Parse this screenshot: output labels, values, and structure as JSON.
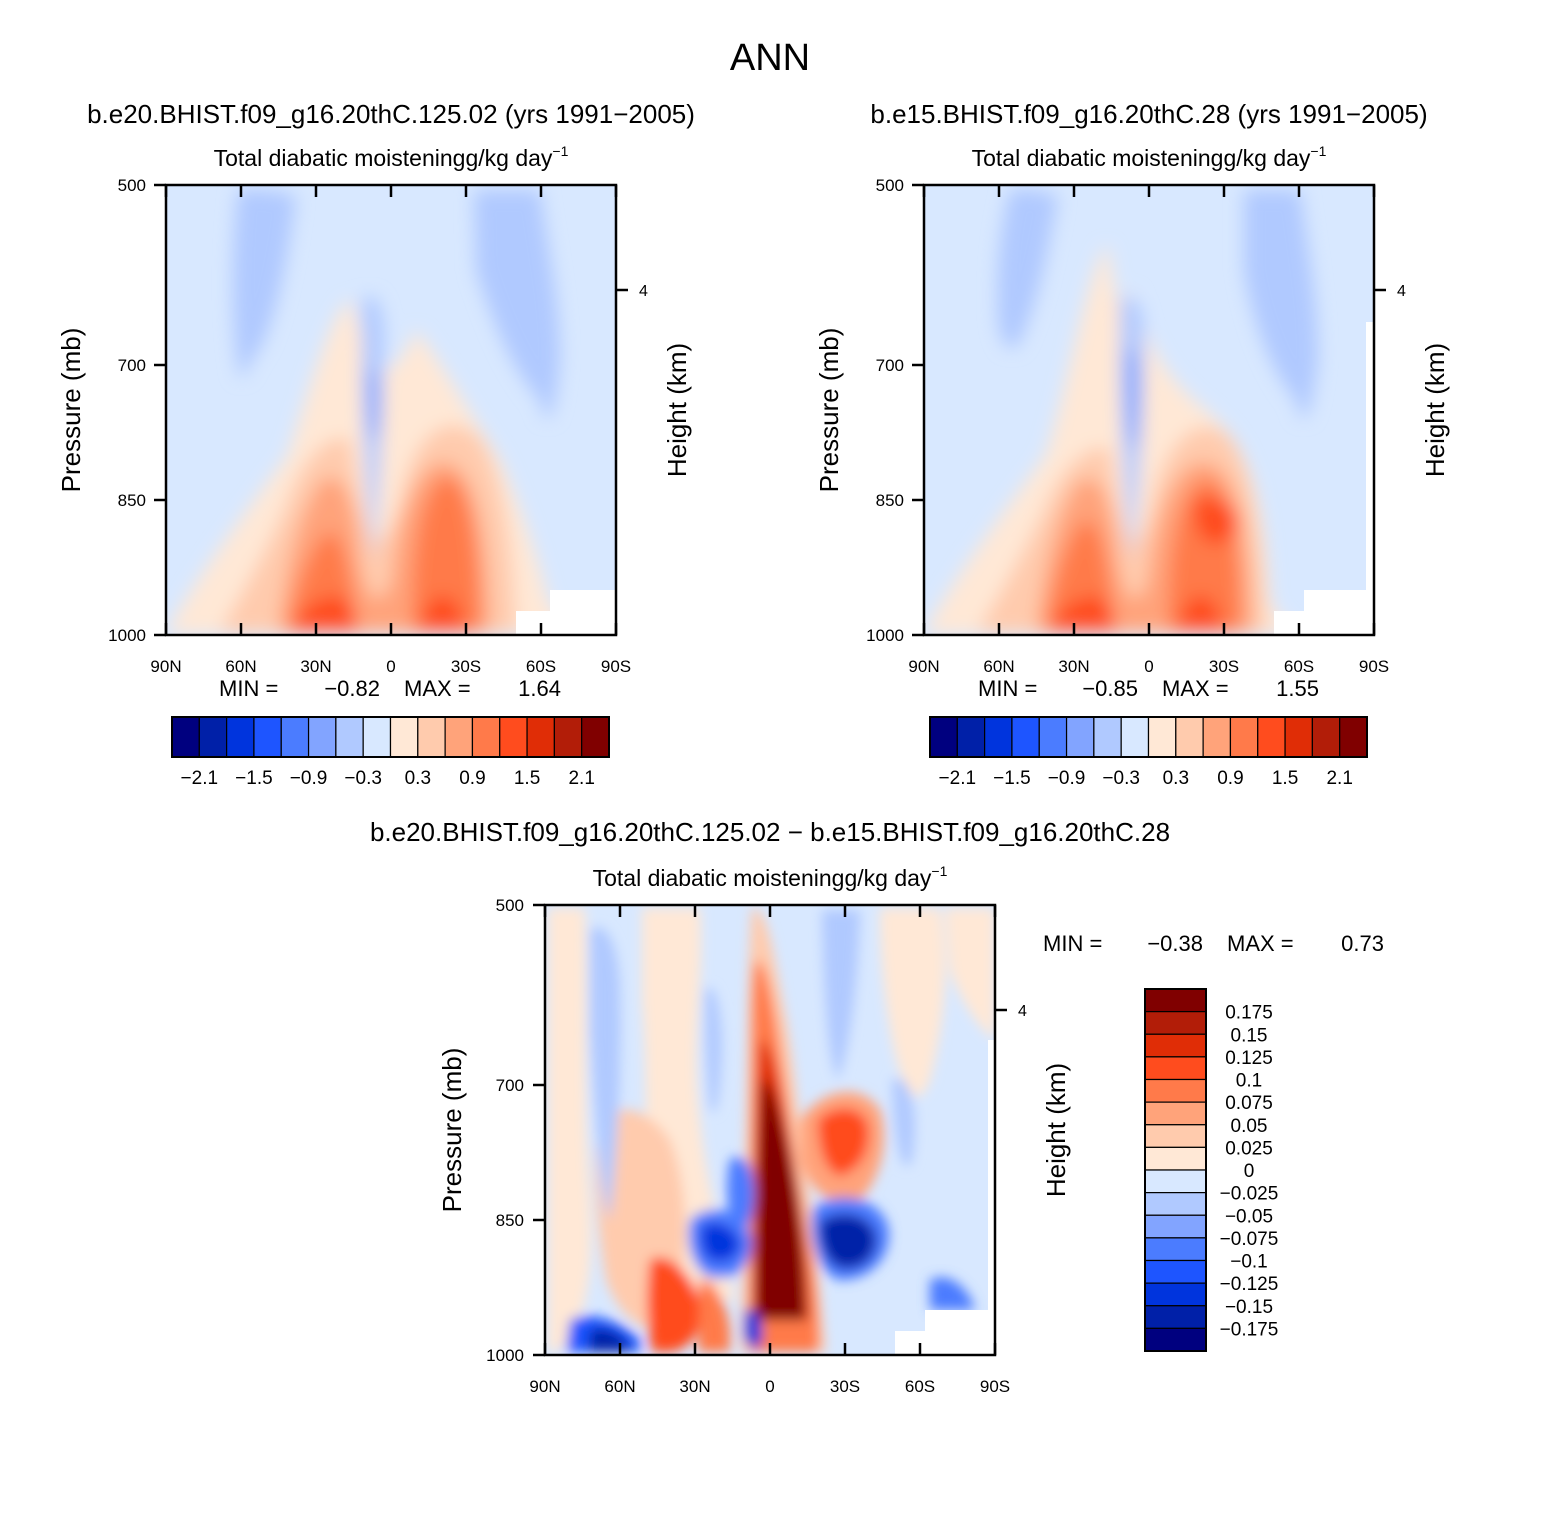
{
  "figure": {
    "title": "ANN"
  },
  "panels": [
    {
      "id": "p1",
      "case_title": "b.e20.BHIST.f09_g16.20thC.125.02 (yrs 1991−2005)",
      "variable_label": "Total diabatic moistening",
      "units_label": "g/kg day",
      "units_exponent": "−1",
      "min_label": "MIN =",
      "min_value": "−0.82",
      "max_label": "MAX =",
      "max_value": "1.64"
    },
    {
      "id": "p2",
      "case_title": "b.e15.BHIST.f09_g16.20thC.28 (yrs 1991−2005)",
      "variable_label": "Total diabatic moistening",
      "units_label": "g/kg day",
      "units_exponent": "−1",
      "min_label": "MIN =",
      "min_value": "−0.85",
      "max_label": "MAX =",
      "max_value": "1.55"
    },
    {
      "id": "p3",
      "case_title": "b.e20.BHIST.f09_g16.20thC.125.02 − b.e15.BHIST.f09_g16.20thC.28",
      "variable_label": "Total diabatic moistening",
      "units_label": "g/kg day",
      "units_exponent": "−1",
      "min_label": "MIN =",
      "min_value": "−0.38",
      "max_label": "MAX =",
      "max_value": "0.73"
    }
  ],
  "chart_data": [
    {
      "panel": "p1",
      "type": "heatmap",
      "plot_kind": "latitude-pressure filled contour",
      "title": "Total diabatic moistening g/kg day^-1",
      "xlabel": "",
      "ylabel": "Pressure (mb)",
      "ylabel_right": "Height (km)",
      "x_ticks": [
        "90N",
        "60N",
        "30N",
        "0",
        "30S",
        "60S",
        "90S"
      ],
      "y_ticks": [
        "500",
        "700",
        "850",
        "1000"
      ],
      "right_ticks": [
        "4"
      ],
      "xlim": [
        90,
        -90
      ],
      "ylim": [
        1000,
        500
      ],
      "min": -0.82,
      "max": 1.64,
      "features": [
        {
          "lat": 17,
          "p": 935,
          "value": 1.5
        },
        {
          "lat": -20,
          "p": 900,
          "value": 1.2
        },
        {
          "lat": -25,
          "p": 860,
          "value": 1.1
        },
        {
          "lat": 6,
          "p": 760,
          "value": -0.45
        },
        {
          "lat": 57,
          "p": 620,
          "value": -0.3
        },
        {
          "lat": -50,
          "p": 620,
          "value": -0.35
        }
      ],
      "colorbar": {
        "labels": [
          "−2.1",
          "−1.5",
          "−0.9",
          "−0.3",
          "0.3",
          "0.9",
          "1.5",
          "2.1"
        ],
        "levels": [
          -2.1,
          -1.8,
          -1.5,
          -1.2,
          -0.9,
          -0.6,
          -0.3,
          0,
          0.3,
          0.6,
          0.9,
          1.2,
          1.5,
          1.8,
          2.1
        ],
        "colors": [
          "#00007f",
          "#0020a8",
          "#0034dd",
          "#1e55ff",
          "#4b7cff",
          "#82a4ff",
          "#b0c9ff",
          "#d8e8ff",
          "#ffe8d6",
          "#ffcbad",
          "#ffa37a",
          "#ff7a4a",
          "#ff4c1e",
          "#e02d06",
          "#b21d08",
          "#800000"
        ]
      }
    },
    {
      "panel": "p2",
      "type": "heatmap",
      "plot_kind": "latitude-pressure filled contour",
      "title": "Total diabatic moistening g/kg day^-1",
      "xlabel": "",
      "ylabel": "Pressure (mb)",
      "ylabel_right": "Height (km)",
      "x_ticks": [
        "90N",
        "60N",
        "30N",
        "0",
        "30S",
        "60S",
        "90S"
      ],
      "y_ticks": [
        "500",
        "700",
        "850",
        "1000"
      ],
      "right_ticks": [
        "4"
      ],
      "xlim": [
        90,
        -90
      ],
      "ylim": [
        1000,
        500
      ],
      "min": -0.85,
      "max": 1.55,
      "features": [
        {
          "lat": 17,
          "p": 935,
          "value": 1.4
        },
        {
          "lat": -25,
          "p": 880,
          "value": 1.3
        },
        {
          "lat": 6,
          "p": 740,
          "value": -0.5
        },
        {
          "lat": 57,
          "p": 620,
          "value": -0.3
        },
        {
          "lat": -50,
          "p": 620,
          "value": -0.35
        }
      ],
      "colorbar": {
        "labels": [
          "−2.1",
          "−1.5",
          "−0.9",
          "−0.3",
          "0.3",
          "0.9",
          "1.5",
          "2.1"
        ],
        "levels": [
          -2.1,
          -1.8,
          -1.5,
          -1.2,
          -0.9,
          -0.6,
          -0.3,
          0,
          0.3,
          0.6,
          0.9,
          1.2,
          1.5,
          1.8,
          2.1
        ],
        "colors": [
          "#00007f",
          "#0020a8",
          "#0034dd",
          "#1e55ff",
          "#4b7cff",
          "#82a4ff",
          "#b0c9ff",
          "#d8e8ff",
          "#ffe8d6",
          "#ffcbad",
          "#ffa37a",
          "#ff7a4a",
          "#ff4c1e",
          "#e02d06",
          "#b21d08",
          "#800000"
        ]
      }
    },
    {
      "panel": "p3",
      "type": "heatmap",
      "plot_kind": "latitude-pressure filled contour (difference)",
      "title": "Total diabatic moistening g/kg day^-1",
      "xlabel": "",
      "ylabel": "Pressure (mb)",
      "ylabel_right": "Height (km)",
      "x_ticks": [
        "90N",
        "60N",
        "30N",
        "0",
        "30S",
        "60S",
        "90S"
      ],
      "y_ticks": [
        "500",
        "700",
        "850",
        "1000"
      ],
      "right_ticks": [
        "4"
      ],
      "xlim": [
        90,
        -90
      ],
      "ylim": [
        1000,
        500
      ],
      "min": -0.38,
      "max": 0.73,
      "features": [
        {
          "lat": 0,
          "p": 780,
          "value": 0.2
        },
        {
          "lat": -30,
          "p": 760,
          "value": 0.14
        },
        {
          "lat": -30,
          "p": 870,
          "value": -0.2
        },
        {
          "lat": 20,
          "p": 860,
          "value": -0.15
        },
        {
          "lat": 40,
          "p": 940,
          "value": 0.15
        }
      ],
      "colorbar": {
        "labels": [
          "0.175",
          "0.15",
          "0.125",
          "0.1",
          "0.075",
          "0.05",
          "0.025",
          "0",
          "−0.025",
          "−0.05",
          "−0.075",
          "−0.1",
          "−0.125",
          "−0.15",
          "−0.175"
        ],
        "levels": [
          0.175,
          0.15,
          0.125,
          0.1,
          0.075,
          0.05,
          0.025,
          0,
          -0.025,
          -0.05,
          -0.075,
          -0.1,
          -0.125,
          -0.15,
          -0.175
        ],
        "colors": [
          "#800000",
          "#b21d08",
          "#e02d06",
          "#ff4c1e",
          "#ff7a4a",
          "#ffa37a",
          "#ffcbad",
          "#ffe8d6",
          "#d8e8ff",
          "#b0c9ff",
          "#82a4ff",
          "#4b7cff",
          "#1e55ff",
          "#0034dd",
          "#0020a8",
          "#00007f"
        ]
      }
    }
  ]
}
